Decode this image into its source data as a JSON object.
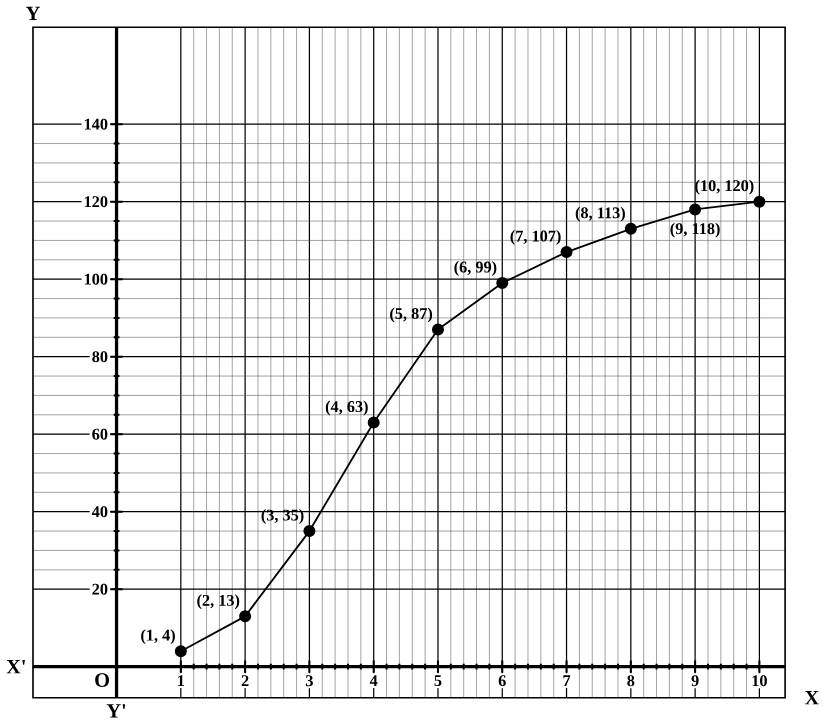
{
  "chart_data": {
    "type": "line",
    "xlabel": "X",
    "ylabel": "Y",
    "x": [
      1,
      2,
      3,
      4,
      5,
      6,
      7,
      8,
      9,
      10
    ],
    "values": [
      4,
      13,
      35,
      63,
      87,
      99,
      107,
      113,
      118,
      120
    ],
    "color": "#000000",
    "marker": "circle",
    "line_style": "solid",
    "grid": true,
    "xlim": [
      -1.3,
      10.4
    ],
    "ylim": [
      -8,
      165
    ],
    "xticks": [
      1,
      2,
      3,
      4,
      5,
      6,
      7,
      8,
      9,
      10
    ],
    "yticks": [
      20,
      40,
      60,
      80,
      100,
      120,
      140
    ],
    "annotations": [
      {
        "text": "(1, 4)",
        "x": 1,
        "y": 4
      },
      {
        "text": "(2, 13)",
        "x": 2,
        "y": 13
      },
      {
        "text": "(3, 35)",
        "x": 3,
        "y": 35
      },
      {
        "text": "(4, 63)",
        "x": 4,
        "y": 63
      },
      {
        "text": "(5, 87)",
        "x": 5,
        "y": 87
      },
      {
        "text": "(6, 99)",
        "x": 6,
        "y": 99
      },
      {
        "text": "(7, 107)",
        "x": 7,
        "y": 107
      },
      {
        "text": "(8, 113)",
        "x": 8,
        "y": 113
      },
      {
        "text": "(9, 118)",
        "x": 9,
        "y": 118
      },
      {
        "text": "(10, 120)",
        "x": 10,
        "y": 120
      },
      "X'",
      "Y'",
      "O"
    ]
  }
}
